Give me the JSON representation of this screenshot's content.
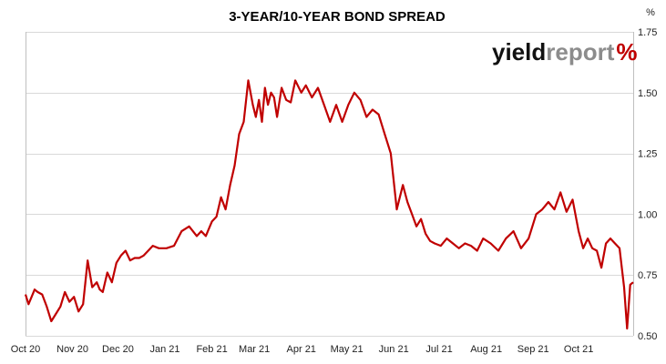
{
  "chart_data": {
    "type": "line",
    "title": "3-YEAR/10-YEAR BOND SPREAD",
    "y_unit": "%",
    "xlabel": "",
    "ylabel": "",
    "ylim": [
      0.5,
      1.75
    ],
    "y_ticks": [
      "0.50",
      "0.75",
      "1.00",
      "1.25",
      "1.50",
      "1.75"
    ],
    "y_tick_values": [
      0.5,
      0.75,
      1.0,
      1.25,
      1.5,
      1.75
    ],
    "x_ticks": [
      "Oct 20",
      "Nov 20",
      "Dec 20",
      "Jan 21",
      "Feb 21",
      "Mar 21",
      "Apr 21",
      "May 21",
      "Jun 21",
      "Jul 21",
      "Aug 21",
      "Sep 21",
      "Oct 21"
    ],
    "x_tick_dates": [
      "2020-10-01",
      "2020-11-01",
      "2020-12-01",
      "2021-01-01",
      "2021-02-01",
      "2021-03-01",
      "2021-04-01",
      "2021-05-01",
      "2021-06-01",
      "2021-07-01",
      "2021-08-01",
      "2021-09-01",
      "2021-10-01"
    ],
    "x_range": [
      "2020-10-01",
      "2021-11-06"
    ],
    "grid": "horizontal",
    "legend": "none",
    "series_color": "#c00000",
    "series": [
      {
        "x": [
          "2020-10-01",
          "2020-10-03",
          "2020-10-05",
          "2020-10-07",
          "2020-10-09",
          "2020-10-12",
          "2020-10-15",
          "2020-10-18",
          "2020-10-21",
          "2020-10-24",
          "2020-10-27",
          "2020-10-30",
          "2020-11-02",
          "2020-11-05",
          "2020-11-08",
          "2020-11-11",
          "2020-11-14",
          "2020-11-17",
          "2020-11-19",
          "2020-11-21",
          "2020-11-24",
          "2020-11-27",
          "2020-11-30",
          "2020-12-03",
          "2020-12-06",
          "2020-12-09",
          "2020-12-12",
          "2020-12-15",
          "2020-12-18",
          "2020-12-21",
          "2020-12-24",
          "2020-12-28",
          "2021-01-02",
          "2021-01-07",
          "2021-01-12",
          "2021-01-17",
          "2021-01-22",
          "2021-01-25",
          "2021-01-28",
          "2021-02-01",
          "2021-02-04",
          "2021-02-07",
          "2021-02-10",
          "2021-02-13",
          "2021-02-16",
          "2021-02-19",
          "2021-02-22",
          "2021-02-25",
          "2021-02-28",
          "2021-03-02",
          "2021-03-04",
          "2021-03-06",
          "2021-03-08",
          "2021-03-10",
          "2021-03-12",
          "2021-03-14",
          "2021-03-16",
          "2021-03-19",
          "2021-03-22",
          "2021-03-25",
          "2021-03-28",
          "2021-04-01",
          "2021-04-04",
          "2021-04-08",
          "2021-04-12",
          "2021-04-16",
          "2021-04-20",
          "2021-04-24",
          "2021-04-28",
          "2021-05-02",
          "2021-05-06",
          "2021-05-10",
          "2021-05-14",
          "2021-05-18",
          "2021-05-22",
          "2021-05-26",
          "2021-05-30",
          "2021-06-03",
          "2021-06-07",
          "2021-06-10",
          "2021-06-13",
          "2021-06-16",
          "2021-06-19",
          "2021-06-22",
          "2021-06-25",
          "2021-06-28",
          "2021-07-02",
          "2021-07-06",
          "2021-07-10",
          "2021-07-14",
          "2021-07-18",
          "2021-07-22",
          "2021-07-26",
          "2021-07-30",
          "2021-08-04",
          "2021-08-09",
          "2021-08-14",
          "2021-08-19",
          "2021-08-24",
          "2021-08-29",
          "2021-09-03",
          "2021-09-07",
          "2021-09-11",
          "2021-09-15",
          "2021-09-19",
          "2021-09-23",
          "2021-09-27",
          "2021-10-01",
          "2021-10-04",
          "2021-10-07",
          "2021-10-10",
          "2021-10-13",
          "2021-10-16",
          "2021-10-19",
          "2021-10-22",
          "2021-10-25",
          "2021-10-28",
          "2021-10-31",
          "2021-11-02",
          "2021-11-04",
          "2021-11-06"
        ],
        "y": [
          0.67,
          0.63,
          0.66,
          0.69,
          0.68,
          0.67,
          0.62,
          0.56,
          0.59,
          0.62,
          0.68,
          0.64,
          0.66,
          0.6,
          0.63,
          0.81,
          0.7,
          0.72,
          0.69,
          0.68,
          0.76,
          0.72,
          0.8,
          0.83,
          0.85,
          0.81,
          0.82,
          0.82,
          0.83,
          0.85,
          0.87,
          0.86,
          0.86,
          0.87,
          0.93,
          0.95,
          0.91,
          0.93,
          0.91,
          0.97,
          0.99,
          1.07,
          1.02,
          1.12,
          1.2,
          1.33,
          1.38,
          1.55,
          1.45,
          1.4,
          1.47,
          1.38,
          1.52,
          1.45,
          1.5,
          1.48,
          1.4,
          1.52,
          1.47,
          1.46,
          1.55,
          1.5,
          1.53,
          1.48,
          1.52,
          1.45,
          1.38,
          1.45,
          1.38,
          1.45,
          1.5,
          1.47,
          1.4,
          1.43,
          1.41,
          1.33,
          1.25,
          1.02,
          1.12,
          1.05,
          1.0,
          0.95,
          0.98,
          0.92,
          0.89,
          0.88,
          0.87,
          0.9,
          0.88,
          0.86,
          0.88,
          0.87,
          0.85,
          0.9,
          0.88,
          0.85,
          0.9,
          0.93,
          0.86,
          0.9,
          1.0,
          1.02,
          1.05,
          1.02,
          1.09,
          1.01,
          1.06,
          0.93,
          0.86,
          0.9,
          0.86,
          0.85,
          0.78,
          0.88,
          0.9,
          0.88,
          0.86,
          0.7,
          0.53,
          0.71,
          0.72
        ]
      }
    ]
  },
  "watermark": {
    "part1": "yield",
    "part2": "report",
    "part3": "%"
  }
}
